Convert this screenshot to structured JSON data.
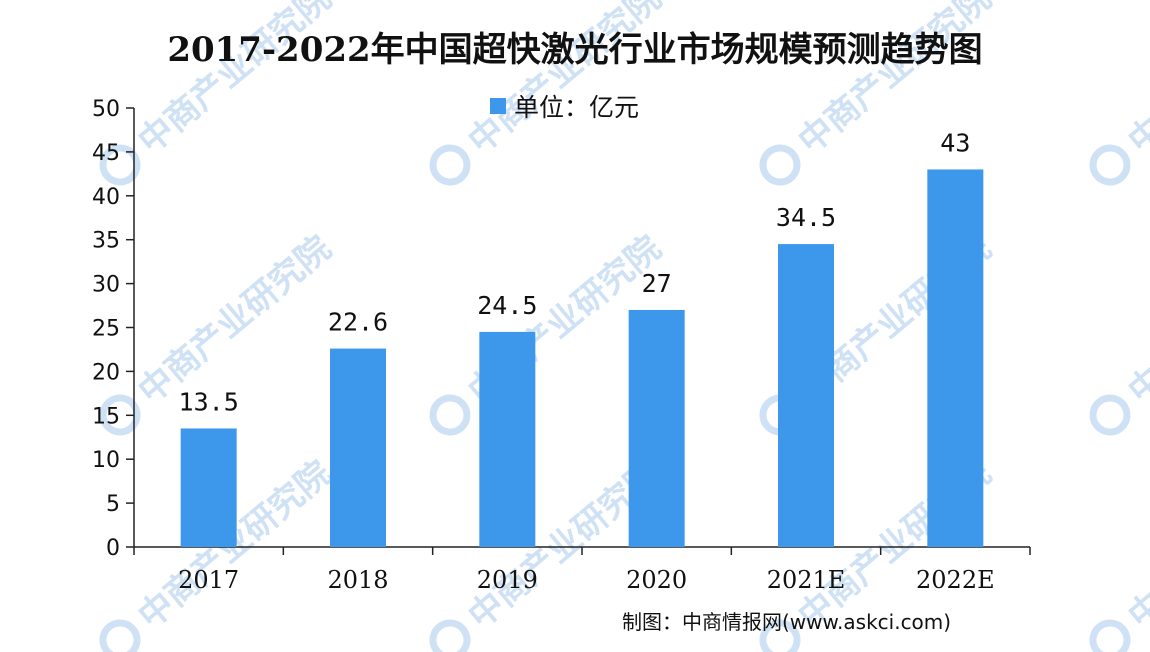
{
  "title": "2017-2022年中国超快激光行业市场规模预测趋势图",
  "legend_label": "单位：亿元",
  "source": "制图：中商情报网(www.askci.com)",
  "watermark_text": "中商产业研究院",
  "colors": {
    "bar": "#3d97ea",
    "axis": "#222222",
    "watermark": "#cfe1f4"
  },
  "chart_data": {
    "type": "bar",
    "title": "2017-2022年中国超快激光行业市场规模预测趋势图",
    "xlabel": "",
    "ylabel": "单位：亿元",
    "categories": [
      "2017",
      "2018",
      "2019",
      "2020",
      "2021E",
      "2022E"
    ],
    "values": [
      13.5,
      22.6,
      24.5,
      27,
      34.5,
      43
    ],
    "data_labels": [
      "13.5",
      "22.6",
      "24.5",
      "27",
      "34.5",
      "43"
    ],
    "ylim": [
      0,
      50
    ],
    "yticks": [
      0,
      5,
      10,
      15,
      20,
      25,
      30,
      35,
      40,
      45,
      50
    ],
    "grid": false,
    "legend_position": "top-center"
  }
}
